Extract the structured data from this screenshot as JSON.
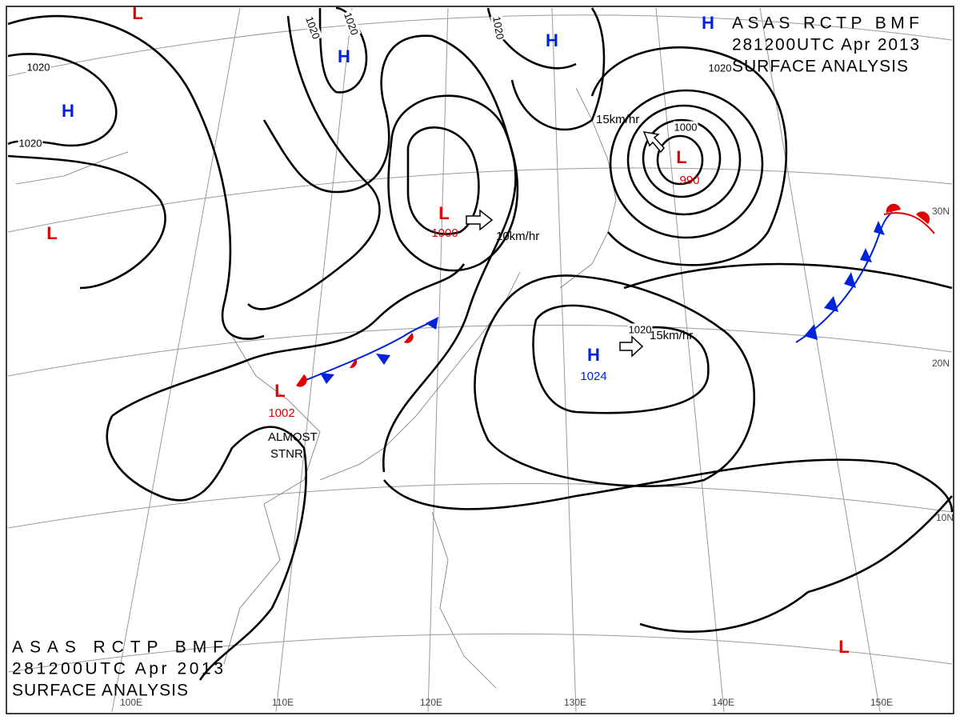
{
  "header": {
    "lines": [
      "ASAS RCTP BMF",
      "281200UTC Apr 2013",
      "SURFACE ANALYSIS"
    ]
  },
  "colors": {
    "L": "#e00000",
    "H": "#0022dd"
  },
  "pressure_systems": [
    {
      "symbol": "L"
    },
    {
      "symbol": "L"
    },
    {
      "symbol": "L",
      "value": 1000
    },
    {
      "symbol": "L",
      "value": 990
    },
    {
      "symbol": "L",
      "value": 1002
    },
    {
      "symbol": "L"
    },
    {
      "symbol": "H"
    },
    {
      "symbol": "H"
    },
    {
      "symbol": "H"
    },
    {
      "symbol": "H"
    },
    {
      "symbol": "H",
      "value": 1024
    }
  ],
  "isobar_labels": [
    1020,
    1020,
    1020,
    1020,
    1020,
    1020,
    1020,
    1000
  ],
  "motion_labels": [
    "10km/hr",
    "15km/hr",
    "15km/hr"
  ],
  "front_label": [
    "ALMOST",
    "STNR"
  ],
  "longitudes": [
    "100E",
    "110E",
    "120E",
    "130E",
    "140E",
    "150E"
  ],
  "latitudes": [
    "30N",
    "20N",
    "10N"
  ]
}
